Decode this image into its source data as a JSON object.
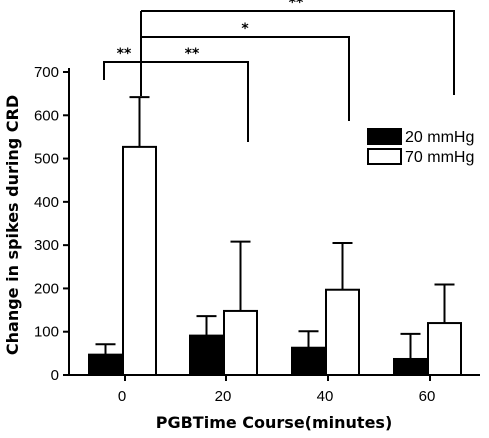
{
  "chart_data": {
    "type": "bar",
    "xlabel": "PGBTime Course(minutes)",
    "ylabel": "Change in spikes during CRD",
    "categories": [
      "0",
      "20",
      "40",
      "60"
    ],
    "ylim": [
      0,
      700
    ],
    "yticks": [
      0,
      100,
      200,
      300,
      400,
      500,
      600,
      700
    ],
    "grid": false,
    "legend_position": "top-right",
    "series": [
      {
        "name": "20 mmHg",
        "values": [
          47,
          91,
          63,
          37
        ],
        "errors": [
          24,
          45,
          38,
          58
        ],
        "color": "#000000",
        "fill": "solid"
      },
      {
        "name": "70 mmHg",
        "values": [
          527,
          148,
          197,
          120
        ],
        "errors": [
          115,
          160,
          108,
          89
        ],
        "color": "#000000",
        "fill": "open"
      }
    ],
    "annotations": [
      {
        "label": "**",
        "from": {
          "category": "0",
          "series": "20 mmHg"
        },
        "to": {
          "category": "0",
          "series": "70 mmHg"
        }
      },
      {
        "label": "**",
        "from": {
          "category": "0",
          "series": "70 mmHg"
        },
        "to": {
          "category": "20",
          "series": "70 mmHg"
        }
      },
      {
        "label": "*",
        "from": {
          "category": "0",
          "series": "70 mmHg"
        },
        "to": {
          "category": "40",
          "series": "70 mmHg"
        }
      },
      {
        "label": "**",
        "from": {
          "category": "0",
          "series": "70 mmHg"
        },
        "to": {
          "category": "60",
          "series": "70 mmHg"
        }
      }
    ]
  }
}
